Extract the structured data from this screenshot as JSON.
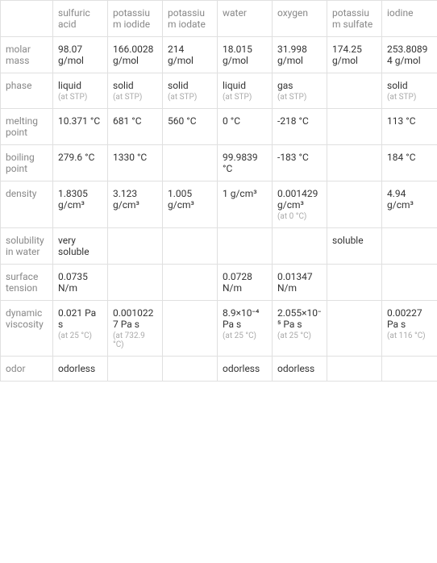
{
  "table": {
    "columns": [
      "",
      "sulfuric acid",
      "potassium iodide",
      "potassium iodate",
      "water",
      "oxygen",
      "potassium sulfate",
      "iodine"
    ],
    "rows": [
      {
        "header": "molar mass",
        "cells": [
          {
            "value": "98.07 g/mol"
          },
          {
            "value": "166.0028 g/mol"
          },
          {
            "value": "214 g/mol"
          },
          {
            "value": "18.015 g/mol"
          },
          {
            "value": "31.998 g/mol"
          },
          {
            "value": "174.25 g/mol"
          },
          {
            "value": "253.80894 g/mol"
          }
        ]
      },
      {
        "header": "phase",
        "cells": [
          {
            "value": "liquid",
            "sub": "(at STP)"
          },
          {
            "value": "solid",
            "sub": "(at STP)"
          },
          {
            "value": "solid",
            "sub": "(at STP)"
          },
          {
            "value": "liquid",
            "sub": "(at STP)"
          },
          {
            "value": "gas",
            "sub": "(at STP)"
          },
          {
            "value": ""
          },
          {
            "value": "solid",
            "sub": "(at STP)"
          }
        ]
      },
      {
        "header": "melting point",
        "cells": [
          {
            "value": "10.371 °C"
          },
          {
            "value": "681 °C"
          },
          {
            "value": "560 °C"
          },
          {
            "value": "0 °C"
          },
          {
            "value": "-218 °C"
          },
          {
            "value": ""
          },
          {
            "value": "113 °C"
          }
        ]
      },
      {
        "header": "boiling point",
        "cells": [
          {
            "value": "279.6 °C"
          },
          {
            "value": "1330 °C"
          },
          {
            "value": ""
          },
          {
            "value": "99.9839 °C"
          },
          {
            "value": "-183 °C"
          },
          {
            "value": ""
          },
          {
            "value": "184 °C"
          }
        ]
      },
      {
        "header": "density",
        "cells": [
          {
            "value": "1.8305 g/cm³"
          },
          {
            "value": "3.123 g/cm³"
          },
          {
            "value": "1.005 g/cm³"
          },
          {
            "value": "1 g/cm³"
          },
          {
            "value": "0.001429 g/cm³",
            "sub": "(at 0 °C)"
          },
          {
            "value": ""
          },
          {
            "value": "4.94 g/cm³"
          }
        ]
      },
      {
        "header": "solubility in water",
        "cells": [
          {
            "value": "very soluble"
          },
          {
            "value": ""
          },
          {
            "value": ""
          },
          {
            "value": ""
          },
          {
            "value": ""
          },
          {
            "value": "soluble"
          },
          {
            "value": ""
          }
        ]
      },
      {
        "header": "surface tension",
        "cells": [
          {
            "value": "0.0735 N/m"
          },
          {
            "value": ""
          },
          {
            "value": ""
          },
          {
            "value": "0.0728 N/m"
          },
          {
            "value": "0.01347 N/m"
          },
          {
            "value": ""
          },
          {
            "value": ""
          }
        ]
      },
      {
        "header": "dynamic viscosity",
        "cells": [
          {
            "value": "0.021 Pa s",
            "sub": "(at 25 °C)"
          },
          {
            "value": "0.0010227 Pa s",
            "sub": "(at 732.9 °C)"
          },
          {
            "value": ""
          },
          {
            "value": "8.9×10⁻⁴ Pa s",
            "sub": "(at 25 °C)"
          },
          {
            "value": "2.055×10⁻⁵ Pa s",
            "sub": "(at 25 °C)"
          },
          {
            "value": ""
          },
          {
            "value": "0.00227 Pa s",
            "sub": "(at 116 °C)"
          }
        ]
      },
      {
        "header": "odor",
        "cells": [
          {
            "value": "odorless"
          },
          {
            "value": ""
          },
          {
            "value": ""
          },
          {
            "value": "odorless"
          },
          {
            "value": "odorless"
          },
          {
            "value": ""
          },
          {
            "value": ""
          }
        ]
      }
    ],
    "styling": {
      "border_color": "#e0e0e0",
      "header_text_color": "#888888",
      "cell_text_color": "#333333",
      "subtext_color": "#aaaaaa",
      "background": "#ffffff",
      "font_size_main": 12,
      "font_size_sub": 10
    }
  }
}
